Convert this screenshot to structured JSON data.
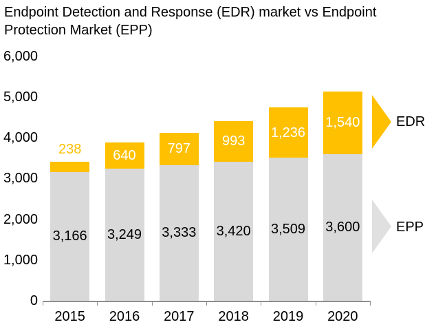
{
  "title": "Endpoint Detection and Response (EDR) market vs Endpoint Protection Market (EPP)",
  "colors": {
    "edr": "#FFC000",
    "epp": "#D9D9D9",
    "epp_legend_arrow": "#E0E0E0",
    "axis": "#8E8E8E",
    "text": "#000000",
    "label_on_edr": "#FFFFFF",
    "label_edr_outside": "#FFC000"
  },
  "legend": [
    {
      "label": "EDR",
      "color": "#FFC000"
    },
    {
      "label": "EPP",
      "color": "#E0E0E0"
    }
  ],
  "chart_data": {
    "type": "bar",
    "stacked": true,
    "title": "Endpoint Detection and Response (EDR) market vs Endpoint Protection Market (EPP)",
    "categories": [
      "2015",
      "2016",
      "2017",
      "2018",
      "2019",
      "2020"
    ],
    "series": [
      {
        "name": "EPP",
        "values": [
          3166,
          3249,
          3333,
          3420,
          3509,
          3600
        ],
        "color": "#D9D9D9",
        "label_color": "#000000"
      },
      {
        "name": "EDR",
        "values": [
          238,
          640,
          797,
          993,
          1236,
          1540
        ],
        "color": "#FFC000",
        "label_color": "#FFFFFF"
      }
    ],
    "value_labels": {
      "epp": [
        "3,166",
        "3,249",
        "3,333",
        "3,420",
        "3,509",
        "3,600"
      ],
      "edr": [
        "238",
        "640",
        "797",
        "993",
        "1,236",
        "1,540"
      ]
    },
    "xlabel": "",
    "ylabel": "",
    "ylim": [
      0,
      6000
    ],
    "yticks": [
      "0",
      "1,000",
      "2,000",
      "3,000",
      "4,000",
      "5,000",
      "6,000"
    ],
    "grid": false,
    "legend_position": "right"
  }
}
